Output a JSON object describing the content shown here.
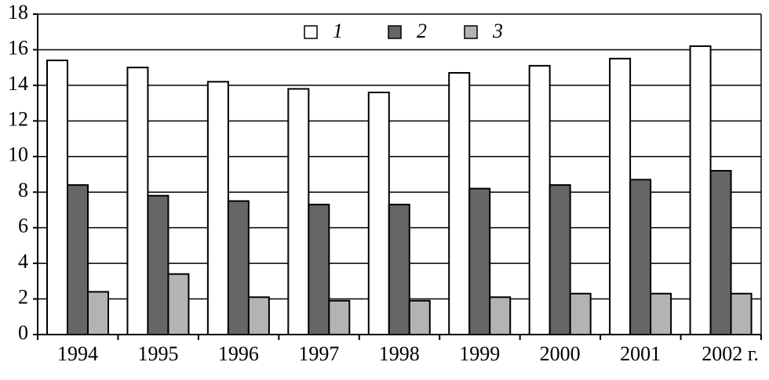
{
  "chart_data": {
    "type": "bar",
    "categories": [
      "1994",
      "1995",
      "1996",
      "1997",
      "1998",
      "1999",
      "2000",
      "2001",
      "2002 г."
    ],
    "series": [
      {
        "name": "1",
        "color": "#ffffff",
        "values": [
          15.4,
          15.0,
          14.2,
          13.8,
          13.6,
          14.7,
          15.1,
          15.5,
          16.2
        ]
      },
      {
        "name": "2",
        "color": "#666666",
        "values": [
          8.4,
          7.8,
          7.5,
          7.3,
          7.3,
          8.2,
          8.4,
          8.7,
          9.2
        ]
      },
      {
        "name": "3",
        "color": "#b3b3b3",
        "values": [
          2.4,
          3.4,
          2.1,
          1.9,
          1.9,
          2.1,
          2.3,
          2.3,
          2.3
        ]
      }
    ],
    "ylim": [
      0,
      18
    ],
    "yticks": [
      0,
      2,
      4,
      6,
      8,
      10,
      12,
      14,
      16,
      18
    ],
    "grid": true,
    "legend": "top"
  }
}
